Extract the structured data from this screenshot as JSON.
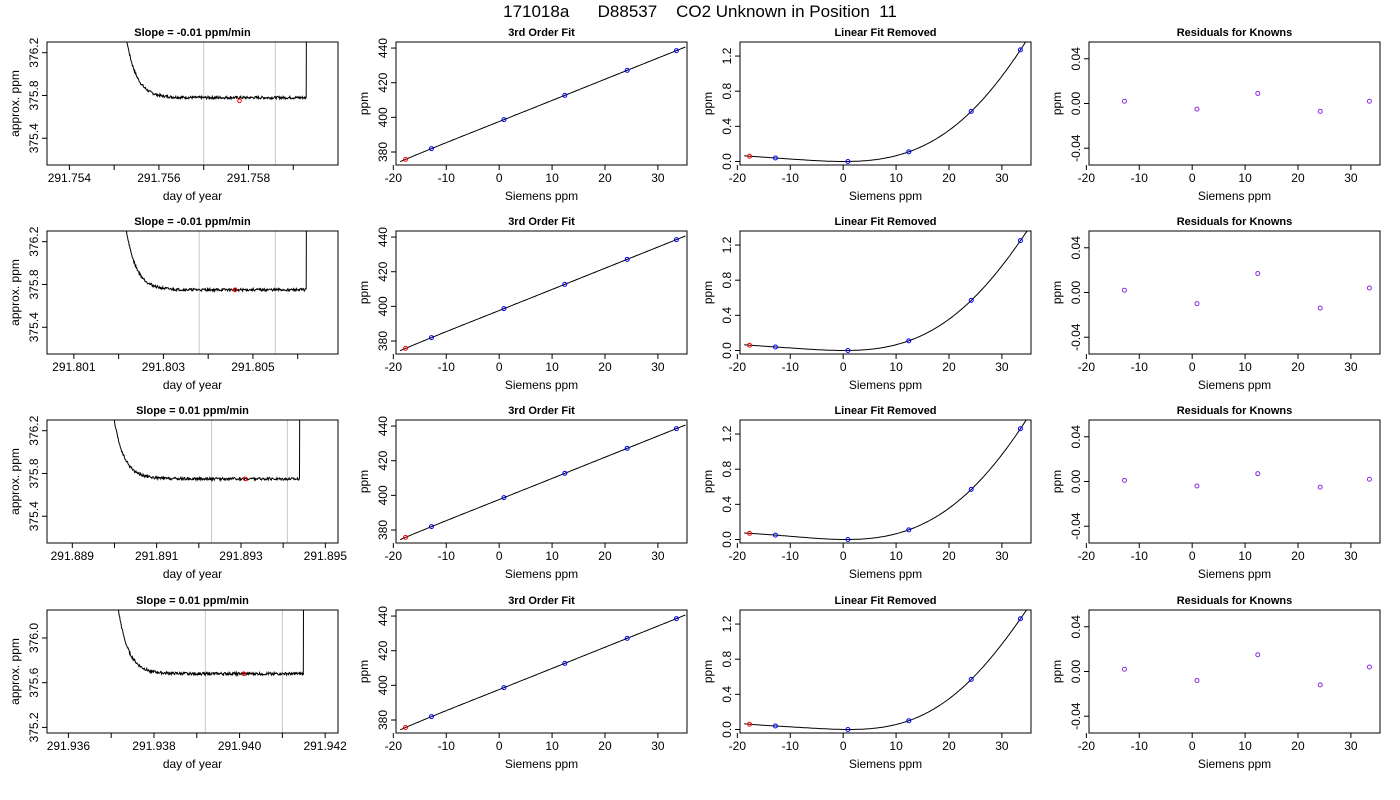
{
  "page_title": "171018a      D88537    CO2 Unknown in Position  11",
  "colors": {
    "known_point": "#0000ff",
    "unknown_point": "#ff0000",
    "residual_point": "#8a2be2",
    "line": "#000000",
    "vline": "#c8c8c8"
  },
  "chart_data": [
    {
      "type": "line",
      "row": 1,
      "title": "Slope =  -0.01  ppm/min",
      "xlabel": "day of year",
      "ylabel": "approx. ppm",
      "xlim": [
        291.7535,
        291.76
      ],
      "ylim": [
        375.15,
        376.3
      ],
      "xticks": [
        291.754,
        291.755,
        291.756,
        291.757,
        291.758,
        291.759
      ],
      "xticklabels": [
        "291.754",
        "",
        "291.756",
        "",
        "291.758",
        ""
      ],
      "yticks": [
        375.4,
        375.8,
        376.2
      ],
      "yticklabels": [
        "375.4",
        "375.8",
        "376.2"
      ],
      "start": 291.755,
      "end": 291.7593,
      "level": 375.78,
      "vlines": [
        291.757,
        291.7586
      ],
      "marker": {
        "x": 291.7578,
        "y": 375.75
      }
    },
    {
      "type": "scatter",
      "row": 1,
      "title": "3rd Order Fit",
      "xlabel": "Siemens ppm",
      "ylabel": "ppm",
      "xlim": [
        -19.5,
        35.5
      ],
      "ylim": [
        372.5,
        443.5
      ],
      "xticks": [
        -20,
        -10,
        0,
        10,
        20,
        30
      ],
      "xticklabels": [
        "-20",
        "-10",
        "0",
        "10",
        "20",
        "30"
      ],
      "yticks": [
        380,
        400,
        420,
        440
      ],
      "yticklabels": [
        "380",
        "400",
        "420",
        "440"
      ],
      "known_x": [
        -12.8,
        0.9,
        12.4,
        24.2,
        33.5
      ],
      "known_y": [
        381.95,
        398.68,
        412.71,
        427.15,
        438.53
      ],
      "unknown": {
        "x": -17.7,
        "y": 375.75
      }
    },
    {
      "type": "scatter",
      "row": 1,
      "title": "Linear Fit Removed",
      "xlabel": "Siemens ppm",
      "ylabel": "ppm",
      "xlim": [
        -19.5,
        35.5
      ],
      "ylim": [
        -0.04,
        1.36
      ],
      "xticks": [
        -20,
        -10,
        0,
        10,
        20,
        30
      ],
      "xticklabels": [
        "-20",
        "-10",
        "0",
        "10",
        "20",
        "30"
      ],
      "yticks": [
        0.0,
        0.4,
        0.8,
        1.2
      ],
      "yticklabels": [
        "0.0",
        "0.4",
        "0.8",
        "1.2"
      ],
      "known_x": [
        -12.8,
        0.9,
        12.4,
        24.2,
        33.5
      ],
      "known_y": [
        0.04,
        0.0,
        0.11,
        0.57,
        1.27
      ],
      "unknown": {
        "x": -17.7,
        "y": 0.06
      }
    },
    {
      "type": "scatter",
      "row": 1,
      "title": "Residuals for Knowns",
      "xlabel": "Siemens ppm",
      "ylabel": "ppm",
      "xlim": [
        -19.5,
        35.5
      ],
      "ylim": [
        -0.055,
        0.055
      ],
      "xticks": [
        -20,
        -10,
        0,
        10,
        20,
        30
      ],
      "xticklabels": [
        "-20",
        "-10",
        "0",
        "10",
        "20",
        "30"
      ],
      "yticks": [
        -0.04,
        0.0,
        0.04
      ],
      "yticklabels": [
        "-0.04",
        "0.00",
        "0.04"
      ],
      "known_x": [
        -12.8,
        0.9,
        12.4,
        24.2,
        33.5
      ],
      "known_y": [
        0.002,
        -0.005,
        0.009,
        -0.007,
        0.002
      ]
    },
    {
      "type": "line",
      "row": 2,
      "title": "Slope =  -0.01  ppm/min",
      "xlabel": "day of year",
      "ylabel": "approx. ppm",
      "xlim": [
        291.8004,
        291.8069
      ],
      "ylim": [
        375.15,
        376.3
      ],
      "xticks": [
        291.801,
        291.802,
        291.803,
        291.804,
        291.805,
        291.806
      ],
      "xticklabels": [
        "291.801",
        "",
        "291.803",
        "",
        "291.805",
        ""
      ],
      "yticks": [
        375.4,
        375.8,
        376.2
      ],
      "yticklabels": [
        "375.4",
        "375.8",
        "376.2"
      ],
      "start": 291.8019,
      "end": 291.8062,
      "level": 375.75,
      "vlines": [
        291.8038,
        291.8055
      ],
      "marker": {
        "x": 291.8046,
        "y": 375.75
      }
    },
    {
      "type": "scatter",
      "row": 2,
      "title": "3rd Order Fit",
      "xlabel": "Siemens ppm",
      "ylabel": "ppm",
      "xlim": [
        -19.5,
        35.5
      ],
      "ylim": [
        372.5,
        443.5
      ],
      "xticks": [
        -20,
        -10,
        0,
        10,
        20,
        30
      ],
      "xticklabels": [
        "-20",
        "-10",
        "0",
        "10",
        "20",
        "30"
      ],
      "yticks": [
        380,
        400,
        420,
        440
      ],
      "yticklabels": [
        "380",
        "400",
        "420",
        "440"
      ],
      "known_x": [
        -12.8,
        0.9,
        12.4,
        24.2,
        33.5
      ],
      "known_y": [
        381.95,
        398.68,
        412.71,
        427.15,
        438.53
      ],
      "unknown": {
        "x": -17.7,
        "y": 375.75
      }
    },
    {
      "type": "scatter",
      "row": 2,
      "title": "Linear Fit Removed",
      "xlabel": "Siemens ppm",
      "ylabel": "ppm",
      "xlim": [
        -19.5,
        35.5
      ],
      "ylim": [
        -0.04,
        1.36
      ],
      "xticks": [
        -20,
        -10,
        0,
        10,
        20,
        30
      ],
      "xticklabels": [
        "-20",
        "-10",
        "0",
        "10",
        "20",
        "30"
      ],
      "yticks": [
        0.0,
        0.4,
        0.8,
        1.2
      ],
      "yticklabels": [
        "0.0",
        "0.4",
        "0.8",
        "1.2"
      ],
      "known_x": [
        -12.8,
        0.9,
        12.4,
        24.2,
        33.5
      ],
      "known_y": [
        0.04,
        0.0,
        0.11,
        0.57,
        1.25
      ],
      "unknown": {
        "x": -17.7,
        "y": 0.06
      }
    },
    {
      "type": "scatter",
      "row": 2,
      "title": "Residuals for Knowns",
      "xlabel": "Siemens ppm",
      "ylabel": "ppm",
      "xlim": [
        -19.5,
        35.5
      ],
      "ylim": [
        -0.055,
        0.055
      ],
      "xticks": [
        -20,
        -10,
        0,
        10,
        20,
        30
      ],
      "xticklabels": [
        "-20",
        "-10",
        "0",
        "10",
        "20",
        "30"
      ],
      "yticks": [
        -0.04,
        0.0,
        0.04
      ],
      "yticklabels": [
        "-0.04",
        "0.00",
        "0.04"
      ],
      "known_x": [
        -12.8,
        0.9,
        12.4,
        24.2,
        33.5
      ],
      "known_y": [
        0.002,
        -0.01,
        0.017,
        -0.014,
        0.004
      ]
    },
    {
      "type": "line",
      "row": 3,
      "title": "Slope =  0.01  ppm/min",
      "xlabel": "day of year",
      "ylabel": "approx. ppm",
      "xlim": [
        291.8884,
        291.8953
      ],
      "ylim": [
        375.15,
        376.3
      ],
      "xticks": [
        291.889,
        291.89,
        291.891,
        291.892,
        291.893,
        291.894,
        291.895
      ],
      "xticklabels": [
        "291.889",
        "",
        "291.891",
        "",
        "291.893",
        "",
        "291.895"
      ],
      "yticks": [
        375.4,
        375.8,
        376.2
      ],
      "yticklabels": [
        "375.4",
        "375.8",
        "376.2"
      ],
      "start": 291.8897,
      "end": 291.8944,
      "level": 375.75,
      "vlines": [
        291.8923,
        291.8941
      ],
      "marker": {
        "x": 291.8931,
        "y": 375.75
      }
    },
    {
      "type": "scatter",
      "row": 3,
      "title": "3rd Order Fit",
      "xlabel": "Siemens ppm",
      "ylabel": "ppm",
      "xlim": [
        -19.5,
        35.5
      ],
      "ylim": [
        372.5,
        443.5
      ],
      "xticks": [
        -20,
        -10,
        0,
        10,
        20,
        30
      ],
      "xticklabels": [
        "-20",
        "-10",
        "0",
        "10",
        "20",
        "30"
      ],
      "yticks": [
        380,
        400,
        420,
        440
      ],
      "yticklabels": [
        "380",
        "400",
        "420",
        "440"
      ],
      "known_x": [
        -12.8,
        0.9,
        12.4,
        24.2,
        33.5
      ],
      "known_y": [
        381.95,
        398.68,
        412.71,
        427.15,
        438.53
      ],
      "unknown": {
        "x": -17.7,
        "y": 375.75
      }
    },
    {
      "type": "scatter",
      "row": 3,
      "title": "Linear Fit Removed",
      "xlabel": "Siemens ppm",
      "ylabel": "ppm",
      "xlim": [
        -19.5,
        35.5
      ],
      "ylim": [
        -0.04,
        1.36
      ],
      "xticks": [
        -20,
        -10,
        0,
        10,
        20,
        30
      ],
      "xticklabels": [
        "-20",
        "-10",
        "0",
        "10",
        "20",
        "30"
      ],
      "yticks": [
        0.0,
        0.4,
        0.8,
        1.2
      ],
      "yticklabels": [
        "0.0",
        "0.4",
        "0.8",
        "1.2"
      ],
      "known_x": [
        -12.8,
        0.9,
        12.4,
        24.2,
        33.5
      ],
      "known_y": [
        0.05,
        0.0,
        0.11,
        0.57,
        1.26
      ],
      "unknown": {
        "x": -17.7,
        "y": 0.07
      }
    },
    {
      "type": "scatter",
      "row": 3,
      "title": "Residuals for Knowns",
      "xlabel": "Siemens ppm",
      "ylabel": "ppm",
      "xlim": [
        -19.5,
        35.5
      ],
      "ylim": [
        -0.055,
        0.055
      ],
      "xticks": [
        -20,
        -10,
        0,
        10,
        20,
        30
      ],
      "xticklabels": [
        "-20",
        "-10",
        "0",
        "10",
        "20",
        "30"
      ],
      "yticks": [
        -0.04,
        0.0,
        0.04
      ],
      "yticklabels": [
        "-0.04",
        "0.00",
        "0.04"
      ],
      "known_x": [
        -12.8,
        0.9,
        12.4,
        24.2,
        33.5
      ],
      "known_y": [
        0.001,
        -0.004,
        0.007,
        -0.005,
        0.002
      ]
    },
    {
      "type": "line",
      "row": 4,
      "title": "Slope =  0.01  ppm/min",
      "xlabel": "day of year",
      "ylabel": "approx. ppm",
      "xlim": [
        291.9355,
        291.9423
      ],
      "ylim": [
        375.15,
        376.25
      ],
      "xticks": [
        291.936,
        291.937,
        291.938,
        291.939,
        291.94,
        291.941,
        291.942
      ],
      "xticklabels": [
        "291.936",
        "",
        "291.938",
        "",
        "291.940",
        "",
        "291.942"
      ],
      "yticks": [
        375.2,
        375.6,
        376.0
      ],
      "yticklabels": [
        "375.2",
        "375.6",
        "376.0"
      ],
      "start": 291.9369,
      "end": 291.9415,
      "level": 375.68,
      "vlines": [
        291.9392,
        291.941
      ],
      "marker": {
        "x": 291.9401,
        "y": 375.68
      }
    },
    {
      "type": "scatter",
      "row": 4,
      "title": "3rd Order Fit",
      "xlabel": "Siemens ppm",
      "ylabel": "ppm",
      "xlim": [
        -19.5,
        35.5
      ],
      "ylim": [
        372.5,
        443.5
      ],
      "xticks": [
        -20,
        -10,
        0,
        10,
        20,
        30
      ],
      "xticklabels": [
        "-20",
        "-10",
        "0",
        "10",
        "20",
        "30"
      ],
      "yticks": [
        380,
        400,
        420,
        440
      ],
      "yticklabels": [
        "380",
        "400",
        "420",
        "440"
      ],
      "known_x": [
        -12.8,
        0.9,
        12.4,
        24.2,
        33.5
      ],
      "known_y": [
        381.95,
        398.68,
        412.71,
        427.15,
        438.53
      ],
      "unknown": {
        "x": -17.7,
        "y": 375.68
      }
    },
    {
      "type": "scatter",
      "row": 4,
      "title": "Linear Fit Removed",
      "xlabel": "Siemens ppm",
      "ylabel": "ppm",
      "xlim": [
        -19.5,
        35.5
      ],
      "ylim": [
        -0.04,
        1.36
      ],
      "xticks": [
        -20,
        -10,
        0,
        10,
        20,
        30
      ],
      "xticklabels": [
        "-20",
        "-10",
        "0",
        "10",
        "20",
        "30"
      ],
      "yticks": [
        0.0,
        0.4,
        0.8,
        1.2
      ],
      "yticklabels": [
        "0.0",
        "0.4",
        "0.8",
        "1.2"
      ],
      "known_x": [
        -12.8,
        0.9,
        12.4,
        24.2,
        33.5
      ],
      "known_y": [
        0.04,
        0.0,
        0.1,
        0.57,
        1.26
      ],
      "unknown": {
        "x": -17.7,
        "y": 0.06
      }
    },
    {
      "type": "scatter",
      "row": 4,
      "title": "Residuals for Knowns",
      "xlabel": "Siemens ppm",
      "ylabel": "ppm",
      "xlim": [
        -19.5,
        35.5
      ],
      "ylim": [
        -0.055,
        0.055
      ],
      "xticks": [
        -20,
        -10,
        0,
        10,
        20,
        30
      ],
      "xticklabels": [
        "-20",
        "-10",
        "0",
        "10",
        "20",
        "30"
      ],
      "yticks": [
        -0.04,
        0.0,
        0.04
      ],
      "yticklabels": [
        "-0.04",
        "0.00",
        "0.04"
      ],
      "known_x": [
        -12.8,
        0.9,
        12.4,
        24.2,
        33.5
      ],
      "known_y": [
        0.002,
        -0.008,
        0.015,
        -0.012,
        0.004
      ]
    }
  ]
}
